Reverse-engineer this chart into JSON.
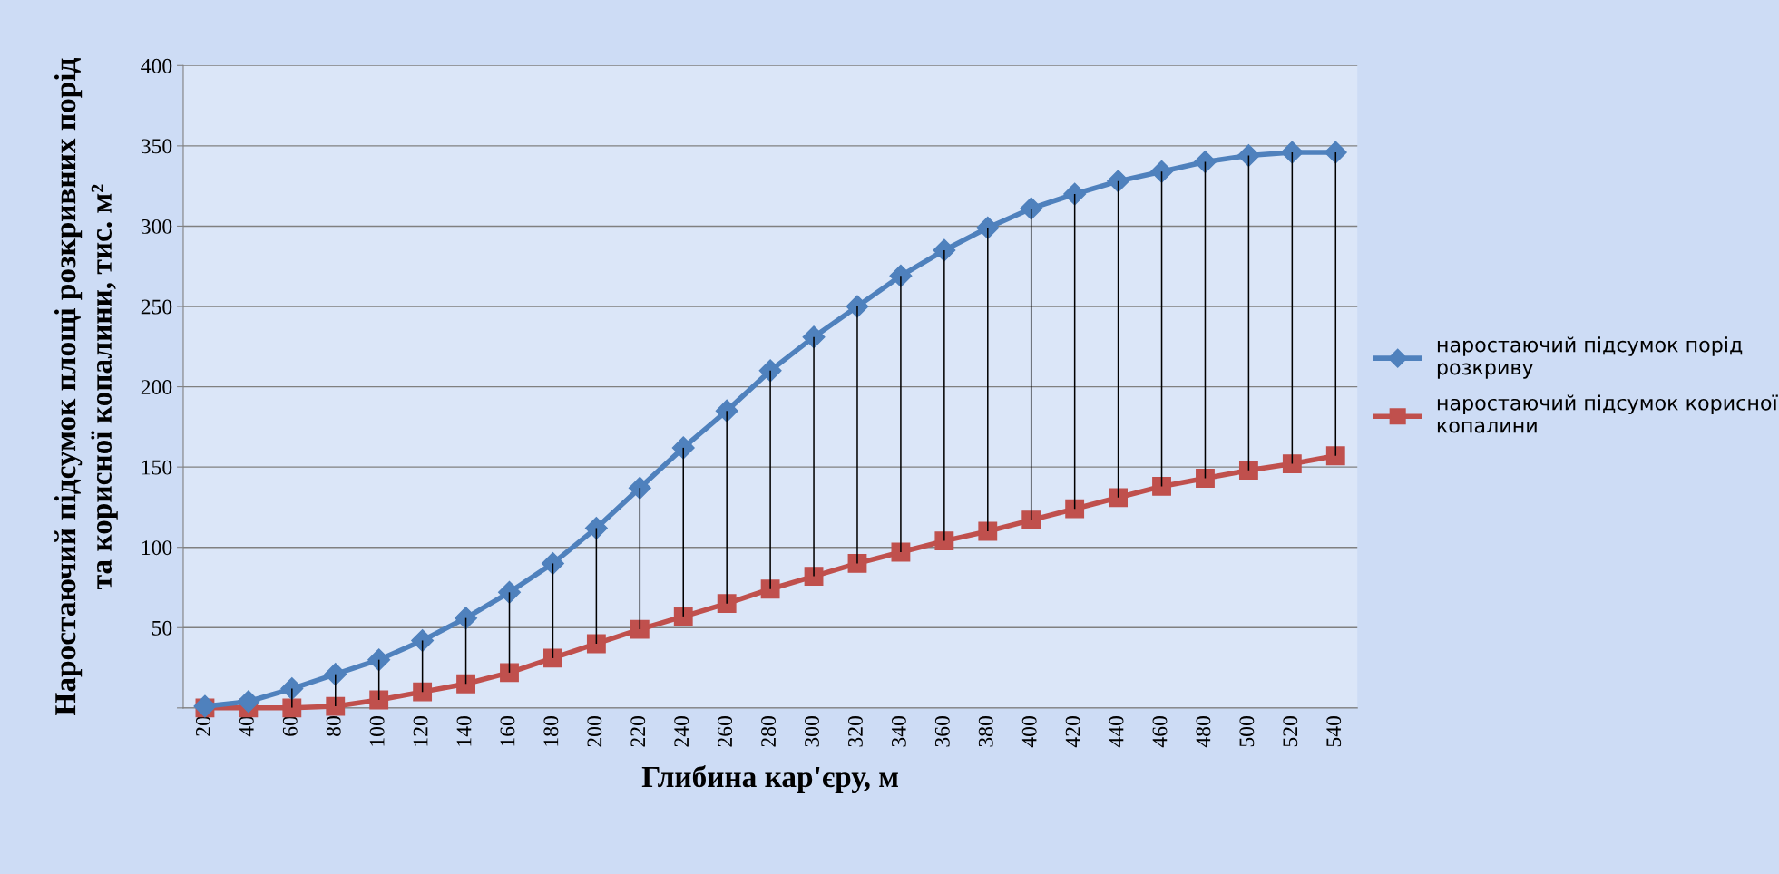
{
  "chart_data": {
    "type": "line",
    "xlabel": "Глибина кар'єру, м",
    "ylabel": "Наростаючий підсумок площі розкривних порід\nта корисної копалини, тис. м²",
    "categories": [
      "20",
      "40",
      "60",
      "80",
      "100",
      "120",
      "140",
      "160",
      "180",
      "200",
      "220",
      "240",
      "260",
      "280",
      "300",
      "320",
      "340",
      "360",
      "380",
      "400",
      "420",
      "440",
      "460",
      "480",
      "500",
      "520",
      "540"
    ],
    "series": [
      {
        "name": "наростаючий підсумок порід\nрозкриву",
        "color": "#4f81bd",
        "marker": "diamond",
        "values": [
          1,
          4,
          12,
          21,
          30,
          42,
          56,
          72,
          90,
          112,
          137,
          162,
          185,
          210,
          231,
          250,
          269,
          285,
          299,
          311,
          320,
          328,
          334,
          340,
          344,
          346,
          346
        ]
      },
      {
        "name": "наростаючий підсумок корисної\nкопалини",
        "color": "#c0504d",
        "marker": "square",
        "values": [
          0,
          0,
          0,
          1,
          5,
          10,
          15,
          22,
          31,
          40,
          49,
          57,
          65,
          74,
          82,
          90,
          97,
          104,
          110,
          117,
          124,
          131,
          138,
          143,
          148,
          152,
          157
        ],
        "errors": [
          null,
          null,
          [
            0,
            12
          ],
          [
            1,
            21
          ],
          [
            5,
            30
          ],
          [
            10,
            42
          ],
          [
            15,
            56
          ],
          [
            22,
            72
          ],
          [
            31,
            90
          ],
          [
            40,
            112
          ],
          [
            49,
            137
          ],
          [
            57,
            162
          ],
          [
            65,
            185
          ],
          [
            74,
            210
          ],
          [
            82,
            231
          ],
          [
            90,
            250
          ],
          [
            97,
            269
          ],
          [
            104,
            285
          ],
          [
            110,
            299
          ],
          [
            117,
            311
          ],
          [
            124,
            320
          ],
          [
            131,
            328
          ],
          [
            138,
            334
          ],
          [
            143,
            340
          ],
          [
            148,
            344
          ],
          [
            152,
            346
          ],
          [
            157,
            346
          ]
        ]
      }
    ],
    "ylim": [
      0,
      400
    ],
    "yticks": [
      {
        "value": 0,
        "label": null
      },
      50,
      100,
      150,
      200,
      250,
      300,
      350,
      400
    ],
    "grid": "y",
    "legend": "right",
    "line_style": "solid"
  }
}
